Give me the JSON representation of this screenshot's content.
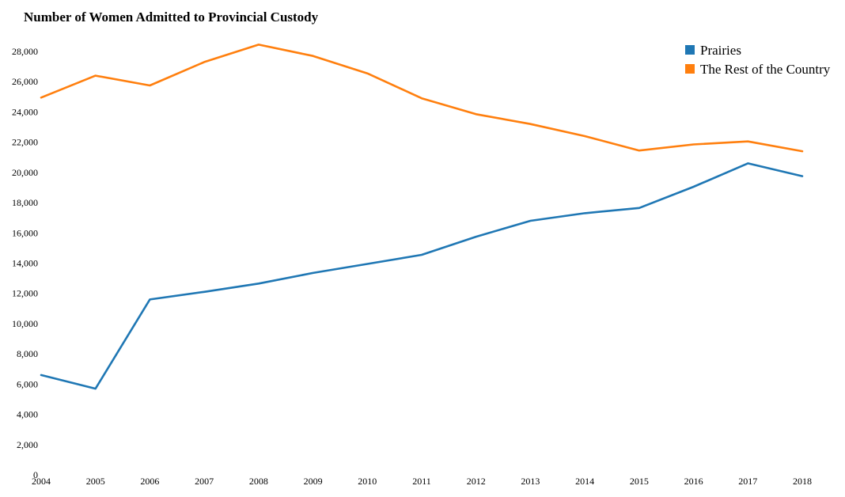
{
  "chart_data": {
    "type": "line",
    "title": "Number of Women Admitted to Provincial Custody",
    "xlabel": "",
    "ylabel": "",
    "x": [
      "2004",
      "2005",
      "2006",
      "2007",
      "2008",
      "2009",
      "2010",
      "2011",
      "2012",
      "2013",
      "2014",
      "2015",
      "2016",
      "2017",
      "2018"
    ],
    "ylim": [
      0,
      28000
    ],
    "yticks": [
      0,
      2000,
      4000,
      6000,
      8000,
      10000,
      12000,
      14000,
      16000,
      18000,
      20000,
      22000,
      24000,
      26000,
      28000
    ],
    "ytick_labels": [
      "0",
      "2,000",
      "4,000",
      "6,000",
      "8,000",
      "10,000",
      "12,000",
      "14,000",
      "16,000",
      "18,000",
      "20,000",
      "22,000",
      "24,000",
      "26,000",
      "28,000"
    ],
    "grid": false,
    "legend_position": "top-right",
    "series": [
      {
        "name": "Prairies",
        "color": "#1f77b4",
        "values": [
          6600,
          5700,
          11600,
          12100,
          12650,
          13350,
          13950,
          14550,
          15750,
          16800,
          17300,
          17650,
          19050,
          20600,
          19750
        ]
      },
      {
        "name": "The Rest of the Country",
        "color": "#ff7f0e",
        "values": [
          24950,
          26400,
          25750,
          27300,
          28450,
          27700,
          26550,
          24900,
          23850,
          23200,
          22400,
          21450,
          21850,
          22050,
          21400
        ]
      }
    ]
  }
}
